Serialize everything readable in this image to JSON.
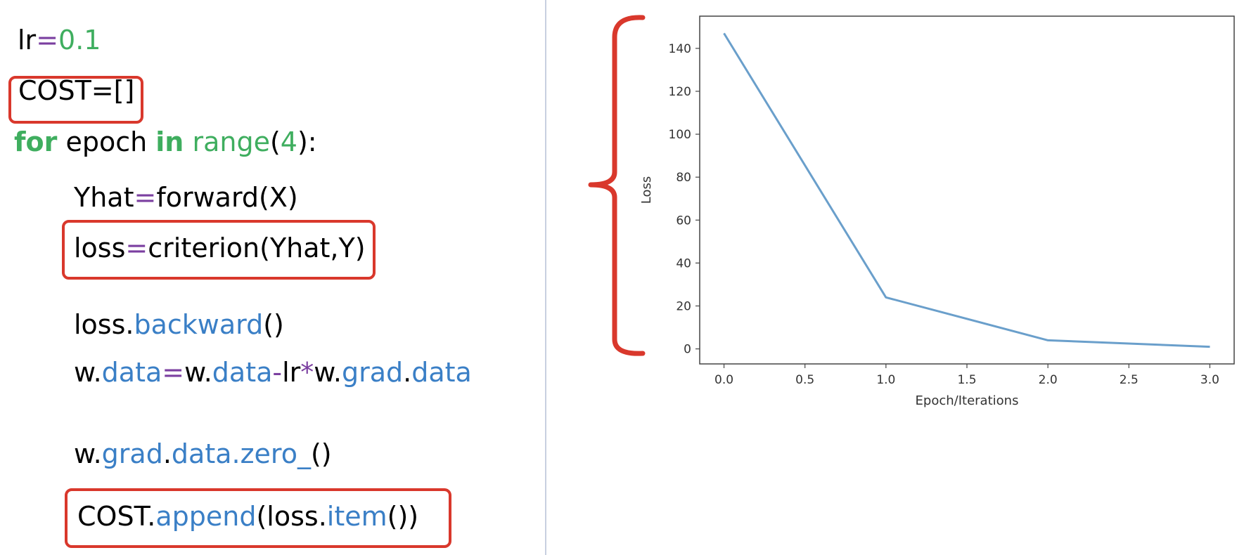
{
  "colors": {
    "operator": "#7b3fa0",
    "number": "#3fae5f",
    "keyword": "#3fae5f",
    "attribute": "#3a7fc6",
    "highlight": "#d9382c",
    "line": "#6a9fcb"
  },
  "code": {
    "line1": {
      "a": "lr",
      "op": "=",
      "num": "0.1"
    },
    "line2": {
      "text": "COST=[]"
    },
    "line3": {
      "kw1": "for",
      "a": " epoch ",
      "kw2": "in",
      "sp": " ",
      "fn": "range",
      "p1": "(",
      "num": "4",
      "p2": "):"
    },
    "line4": {
      "a": "Yhat",
      "op": "=",
      "b": "forward(X)"
    },
    "line5": {
      "a": "loss",
      "op": "=",
      "b": "criterion(Yhat,Y)"
    },
    "line6": {
      "a": "loss.",
      "attr": "backward",
      "b": "()"
    },
    "line7": {
      "a": "w.",
      "attr1": "data",
      "op1": "=",
      "b": "w.",
      "attr2": "data",
      "op2": "-",
      "c": "lr",
      "op3": "*",
      "d": "w.",
      "attr3": "grad",
      "e": ".",
      "attr4": "data"
    },
    "line8": {
      "a": "w.",
      "attr1": "grad",
      "b": ".",
      "attr2": "data.zero_",
      "c": "()"
    },
    "line9": {
      "a": "COST.",
      "attr1": "append",
      "b": "(loss.",
      "attr2": "item",
      "c": "())"
    }
  },
  "chart_data": {
    "type": "line",
    "x": [
      0.0,
      1.0,
      2.0,
      3.0
    ],
    "y": [
      147,
      24,
      4,
      1
    ],
    "xlabel": "Epoch/Iterations",
    "ylabel": "Loss",
    "xlim": [
      -0.15,
      3.15
    ],
    "ylim": [
      -7,
      155
    ],
    "xticks": [
      0.0,
      0.5,
      1.0,
      1.5,
      2.0,
      2.5,
      3.0
    ],
    "xtick_labels": [
      "0.0",
      "0.5",
      "1.0",
      "1.5",
      "2.0",
      "2.5",
      "3.0"
    ],
    "yticks": [
      0,
      20,
      40,
      60,
      80,
      100,
      120,
      140
    ],
    "ytick_labels": [
      "0",
      "20",
      "40",
      "60",
      "80",
      "100",
      "120",
      "140"
    ],
    "grid": false
  }
}
